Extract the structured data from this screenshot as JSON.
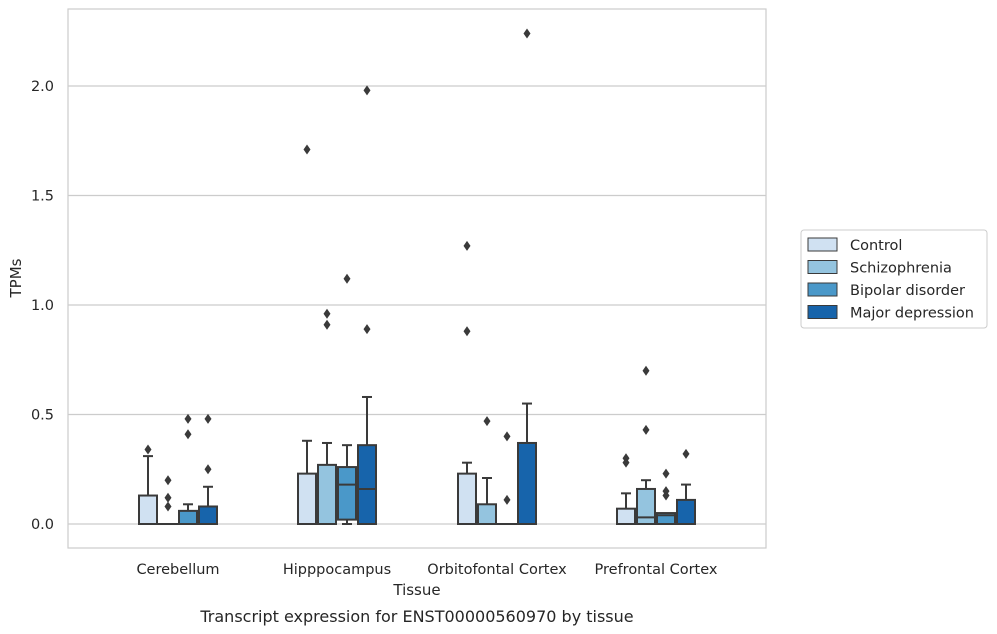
{
  "chart_data": {
    "type": "box",
    "title": "",
    "caption": "Transcript expression for ENST00000560970 by tissue",
    "xlabel": "Tissue",
    "ylabel": "TPMs",
    "ylim": [
      -0.11,
      2.37
    ],
    "yticks": [
      0.0,
      0.5,
      1.0,
      1.5,
      2.0
    ],
    "ytick_labels": [
      "0.0",
      "0.5",
      "1.0",
      "1.5",
      "2.0"
    ],
    "grid": "horizontal",
    "legend_position": "right",
    "categories": [
      "Cerebellum",
      "Hipppocampus",
      "Orbitofontal Cortex",
      "Prefrontal Cortex"
    ],
    "series": [
      {
        "name": "Control",
        "color": "#d0e1f2",
        "boxes": [
          {
            "q1": 0.0,
            "median": 0.0,
            "q3": 0.13,
            "whisker_low": 0.0,
            "whisker_high": 0.31,
            "outliers": [
              0.34
            ]
          },
          {
            "q1": 0.0,
            "median": 0.0,
            "q3": 0.23,
            "whisker_low": 0.0,
            "whisker_high": 0.38,
            "outliers": [
              1.71
            ]
          },
          {
            "q1": 0.0,
            "median": 0.0,
            "q3": 0.23,
            "whisker_low": 0.0,
            "whisker_high": 0.28,
            "outliers": [
              0.88,
              1.27
            ]
          },
          {
            "q1": 0.0,
            "median": 0.0,
            "q3": 0.07,
            "whisker_low": 0.0,
            "whisker_high": 0.14,
            "outliers": [
              0.28,
              0.3
            ]
          }
        ]
      },
      {
        "name": "Schizophrenia",
        "color": "#94c4df",
        "boxes": [
          {
            "q1": 0.0,
            "median": 0.0,
            "q3": 0.0,
            "whisker_low": 0.0,
            "whisker_high": 0.0,
            "outliers": [
              0.08,
              0.12,
              0.2
            ]
          },
          {
            "q1": 0.0,
            "median": 0.0,
            "q3": 0.27,
            "whisker_low": 0.0,
            "whisker_high": 0.37,
            "outliers": [
              0.91,
              0.96
            ]
          },
          {
            "q1": 0.0,
            "median": 0.0,
            "q3": 0.09,
            "whisker_low": 0.0,
            "whisker_high": 0.21,
            "outliers": [
              0.47
            ]
          },
          {
            "q1": 0.0,
            "median": 0.03,
            "q3": 0.16,
            "whisker_low": 0.0,
            "whisker_high": 0.2,
            "outliers": [
              0.43,
              0.7
            ]
          }
        ]
      },
      {
        "name": "Bipolar disorder",
        "color": "#4a98c9",
        "boxes": [
          {
            "q1": 0.0,
            "median": 0.0,
            "q3": 0.06,
            "whisker_low": 0.0,
            "whisker_high": 0.09,
            "outliers": [
              0.41,
              0.48
            ]
          },
          {
            "q1": 0.02,
            "median": 0.18,
            "q3": 0.26,
            "whisker_low": 0.0,
            "whisker_high": 0.36,
            "outliers": [
              1.12
            ]
          },
          {
            "q1": 0.0,
            "median": 0.0,
            "q3": 0.0,
            "whisker_low": 0.0,
            "whisker_high": 0.0,
            "outliers": [
              0.11,
              0.4
            ]
          },
          {
            "q1": 0.0,
            "median": 0.04,
            "q3": 0.05,
            "whisker_low": 0.0,
            "whisker_high": 0.05,
            "outliers": [
              0.13,
              0.15,
              0.23
            ]
          }
        ]
      },
      {
        "name": "Major depression",
        "color": "#1764ab",
        "boxes": [
          {
            "q1": 0.0,
            "median": 0.0,
            "q3": 0.08,
            "whisker_low": 0.0,
            "whisker_high": 0.17,
            "outliers": [
              0.25,
              0.48
            ]
          },
          {
            "q1": 0.0,
            "median": 0.16,
            "q3": 0.36,
            "whisker_low": 0.0,
            "whisker_high": 0.58,
            "outliers": [
              0.89,
              1.98
            ]
          },
          {
            "q1": 0.0,
            "median": 0.0,
            "q3": 0.37,
            "whisker_low": 0.0,
            "whisker_high": 0.55,
            "outliers": [
              2.24
            ]
          },
          {
            "q1": 0.0,
            "median": 0.0,
            "q3": 0.11,
            "whisker_low": 0.0,
            "whisker_high": 0.18,
            "outliers": [
              0.32
            ]
          }
        ]
      }
    ]
  }
}
